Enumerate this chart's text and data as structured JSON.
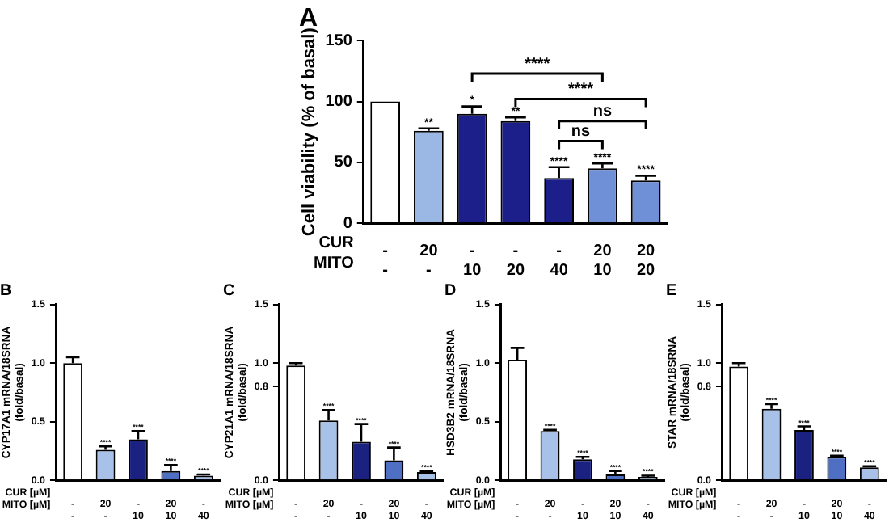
{
  "chart_data": [
    {
      "type": "bar",
      "title": "A",
      "ylabel": "Cell viability (% of basal)",
      "categories": [
        "-\n-",
        "20\n-",
        "-\n10",
        "-\n20",
        "-\n40",
        "20\n10",
        "20\n20"
      ],
      "values": [
        100,
        76,
        90,
        84,
        37,
        45,
        35
      ],
      "errors": [
        null,
        [
          76,
          78
        ],
        [
          90,
          96
        ],
        [
          84,
          87
        ],
        [
          37,
          46
        ],
        [
          45,
          49
        ],
        [
          35,
          39
        ]
      ],
      "colors": [
        "#ffffff",
        "#9bb7e3",
        "#1c1f8a",
        "#1c1f8a",
        "#1c1f8a",
        "#6f8fd6",
        "#6f8fd6"
      ],
      "value_labels": [
        null,
        "**",
        "*",
        "**",
        "****",
        "****",
        "****"
      ],
      "ylim": [
        0,
        150
      ],
      "yticks": [
        0,
        50,
        100,
        150
      ],
      "grid": false,
      "annotations": [
        "CUR",
        "MITO",
        "****",
        "****",
        "ns",
        "ns"
      ]
    },
    {
      "type": "bar",
      "title": "B",
      "ylabel": "CYP17A1 mRNA/18SRNA\n(fold/basal)",
      "categories": [
        "-\n-",
        "20\n-",
        "-\n10",
        "20\n10",
        "-\n40"
      ],
      "values": [
        1.0,
        0.26,
        0.35,
        0.08,
        0.04
      ],
      "errors": [
        [
          1.0,
          1.05
        ],
        [
          0.26,
          0.29
        ],
        [
          0.35,
          0.42
        ],
        [
          0.08,
          0.13
        ],
        [
          0.04,
          0.05
        ]
      ],
      "colors": [
        "#ffffff",
        "#a8c1e8",
        "#1a2180",
        "#4f6fc5",
        "#a8c1e8"
      ],
      "value_labels": [
        null,
        "****",
        "****",
        "****",
        "****"
      ],
      "ylim": [
        0,
        1.5
      ],
      "yticks": [
        {
          "value": 0,
          "label": "0.0"
        },
        {
          "value": 0.5,
          "label": "0.5"
        },
        {
          "value": 1,
          "label": "1.0"
        },
        {
          "value": 1.5,
          "label": "1.5"
        }
      ],
      "grid": false,
      "annotations": [
        "CUR [µM]",
        "MITO [µM]"
      ]
    },
    {
      "type": "bar",
      "title": "C",
      "ylabel": "CYP21A1 mRNA/18SRNA\n(fold/basal)",
      "categories": [
        "-\n-",
        "20\n-",
        "-\n10",
        "20\n10",
        "-\n40"
      ],
      "values": [
        0.98,
        0.51,
        0.33,
        0.17,
        0.07
      ],
      "errors": [
        [
          0.98,
          1.0
        ],
        [
          0.51,
          0.6
        ],
        [
          0.33,
          0.48
        ],
        [
          0.17,
          0.28
        ],
        [
          0.07,
          0.08
        ]
      ],
      "colors": [
        "#ffffff",
        "#a8c1e8",
        "#1a2180",
        "#4f6fc5",
        "#a8c1e8"
      ],
      "value_labels": [
        null,
        "****",
        "****",
        "****",
        "****"
      ],
      "ylim": [
        0,
        1.5
      ],
      "yticks": [
        {
          "value": 0,
          "label": "0.0"
        },
        {
          "value": 0.8,
          "label": "0.8"
        },
        {
          "value": 1,
          "label": "1.0"
        },
        {
          "value": 1.5,
          "label": "1.5"
        }
      ],
      "grid": false,
      "annotations": [
        "CUR [µM]",
        "MITO [µM]"
      ]
    },
    {
      "type": "bar",
      "title": "D",
      "ylabel": "HSD3B2 mRNA/18SRNA\n(fold/basal)",
      "categories": [
        "-\n-",
        "20\n-",
        "-\n10",
        "20\n10",
        "-\n40"
      ],
      "values": [
        1.03,
        0.42,
        0.18,
        0.05,
        0.03
      ],
      "errors": [
        [
          1.03,
          1.13
        ],
        [
          0.42,
          0.43
        ],
        [
          0.18,
          0.2
        ],
        [
          0.05,
          0.08
        ],
        [
          0.03,
          0.04
        ]
      ],
      "colors": [
        "#ffffff",
        "#a8c1e8",
        "#1a2180",
        "#4f6fc5",
        "#a8c1e8"
      ],
      "value_labels": [
        null,
        "****",
        "****",
        "****",
        "****"
      ],
      "ylim": [
        0,
        1.5
      ],
      "yticks": [
        {
          "value": 0,
          "label": "0.0"
        },
        {
          "value": 0.5,
          "label": "0.5"
        },
        {
          "value": 1,
          "label": "1.0"
        },
        {
          "value": 1.5,
          "label": "1.5"
        }
      ],
      "grid": false,
      "annotations": [
        "CUR [µM]",
        "MITO [µM]"
      ]
    },
    {
      "type": "bar",
      "title": "E",
      "ylabel": "STAR mRNA/18SRNA\n(fold/basal)",
      "categories": [
        "-\n-",
        "20\n-",
        "-\n10",
        "20\n10",
        "-\n40"
      ],
      "values": [
        0.97,
        0.61,
        0.43,
        0.2,
        0.11
      ],
      "errors": [
        [
          0.97,
          1.0
        ],
        [
          0.61,
          0.65
        ],
        [
          0.43,
          0.46
        ],
        [
          0.2,
          0.21
        ],
        [
          0.11,
          0.12
        ]
      ],
      "colors": [
        "#ffffff",
        "#a8c1e8",
        "#1a2180",
        "#4f6fc5",
        "#a8c1e8"
      ],
      "value_labels": [
        null,
        "****",
        "****",
        "****",
        "****"
      ],
      "ylim": [
        0,
        1.5
      ],
      "yticks": [
        {
          "value": 0,
          "label": "0.0"
        },
        {
          "value": 0.8,
          "label": "0.8"
        },
        {
          "value": 1,
          "label": "1.0"
        },
        {
          "value": 1.5,
          "label": "1.5"
        }
      ],
      "grid": false,
      "annotations": [
        "CUR [µM]",
        "MITO [µM]"
      ]
    }
  ]
}
